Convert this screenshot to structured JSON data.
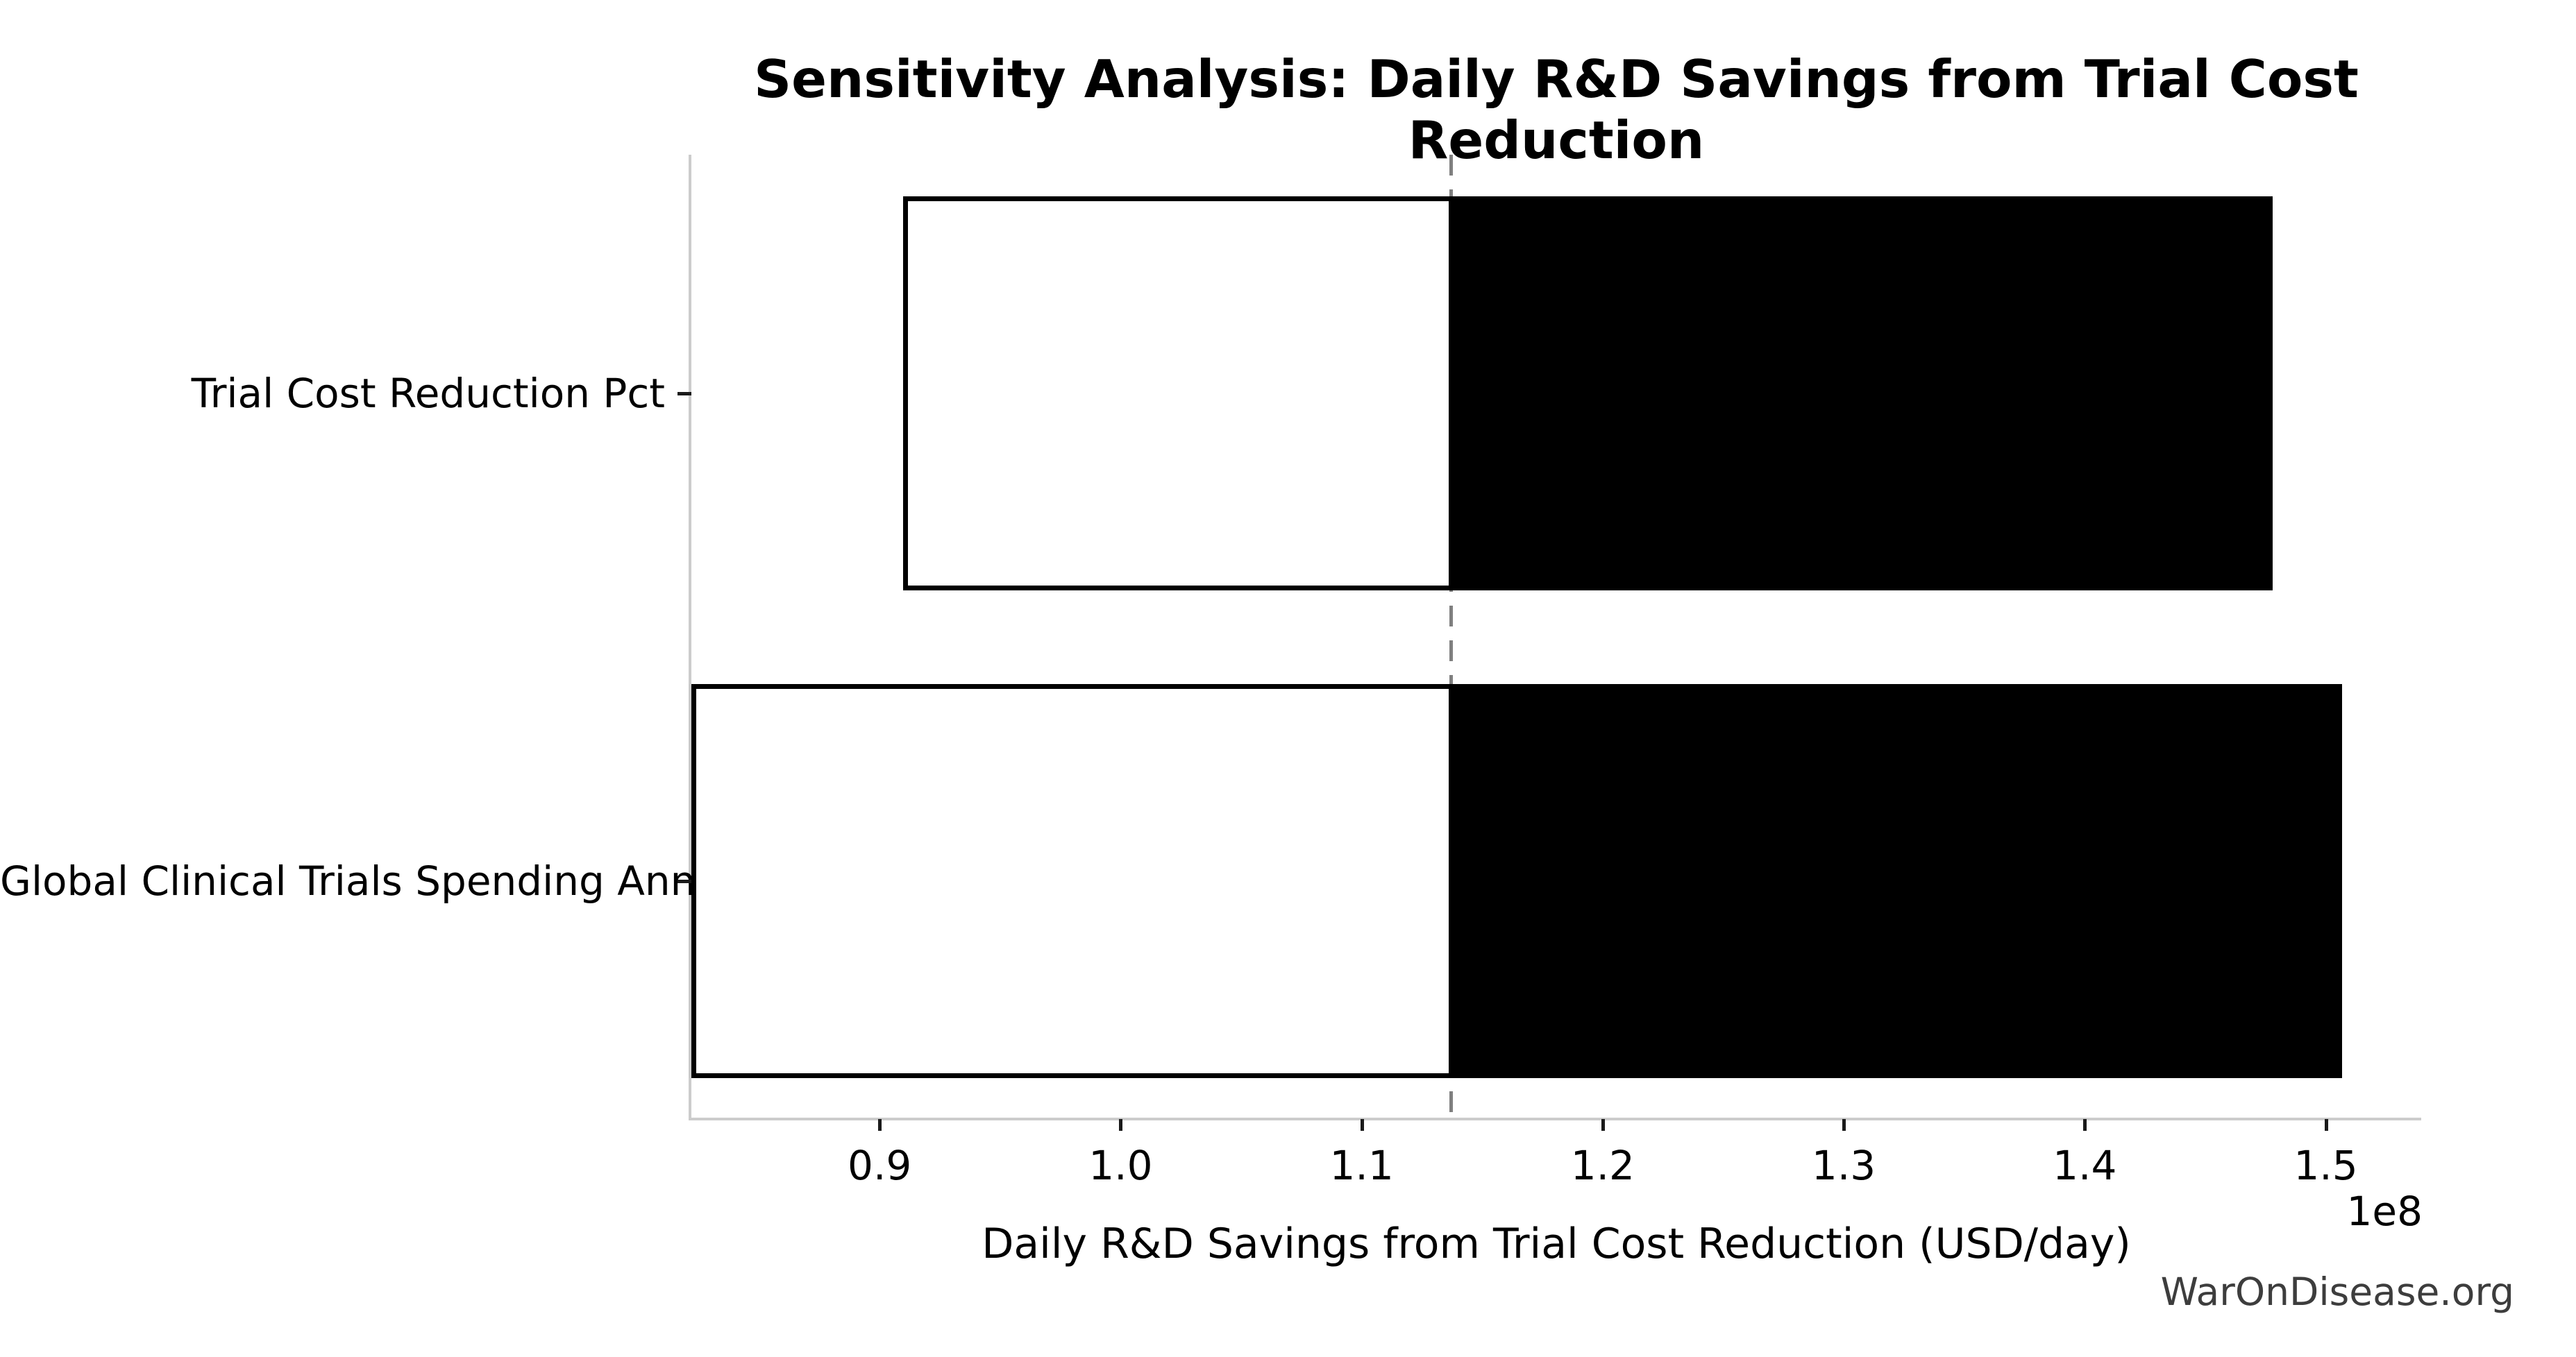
{
  "chart_data": {
    "type": "bar",
    "subtype": "tornado-sensitivity",
    "orientation": "horizontal",
    "title": "Sensitivity Analysis: Daily R&D Savings from Trial Cost Reduction",
    "xlabel": "Daily R&D Savings from Trial Cost Reduction (USD/day)",
    "ylabel": "",
    "categories": [
      "Trial Cost Reduction Pct",
      "Global Clinical Trials Spending Annual"
    ],
    "bars": [
      {
        "label": "Trial Cost Reduction Pct",
        "low": 90960000,
        "high": 147810000
      },
      {
        "label": "Global Clinical Trials Spending Annual",
        "low": 82190000,
        "high": 150690000
      }
    ],
    "baseline": 113700000,
    "segment_styles": {
      "low_fill": "#ffffff",
      "high_fill": "#000000",
      "edge": "#000000"
    },
    "x_ticks": [
      90000000,
      100000000,
      110000000,
      120000000,
      130000000,
      140000000,
      150000000
    ],
    "x_tick_labels": [
      "0.9",
      "1.0",
      "1.1",
      "1.2",
      "1.3",
      "1.4",
      "1.5"
    ],
    "x_offset_label": "1e8",
    "xlim": [
      82190000,
      153960000
    ],
    "grid": false,
    "legend": null
  },
  "watermark": "WarOnDisease.org",
  "colors": {
    "background": "#ffffff",
    "bar_low_fill": "#ffffff",
    "bar_high_fill": "#000000",
    "bar_edge": "#000000",
    "baseline_dash": "#7f7f7f",
    "spine": "#cccccc",
    "tick_mark": "#1a1a1a",
    "text": "#000000",
    "watermark_text": "#3d3d3d"
  }
}
